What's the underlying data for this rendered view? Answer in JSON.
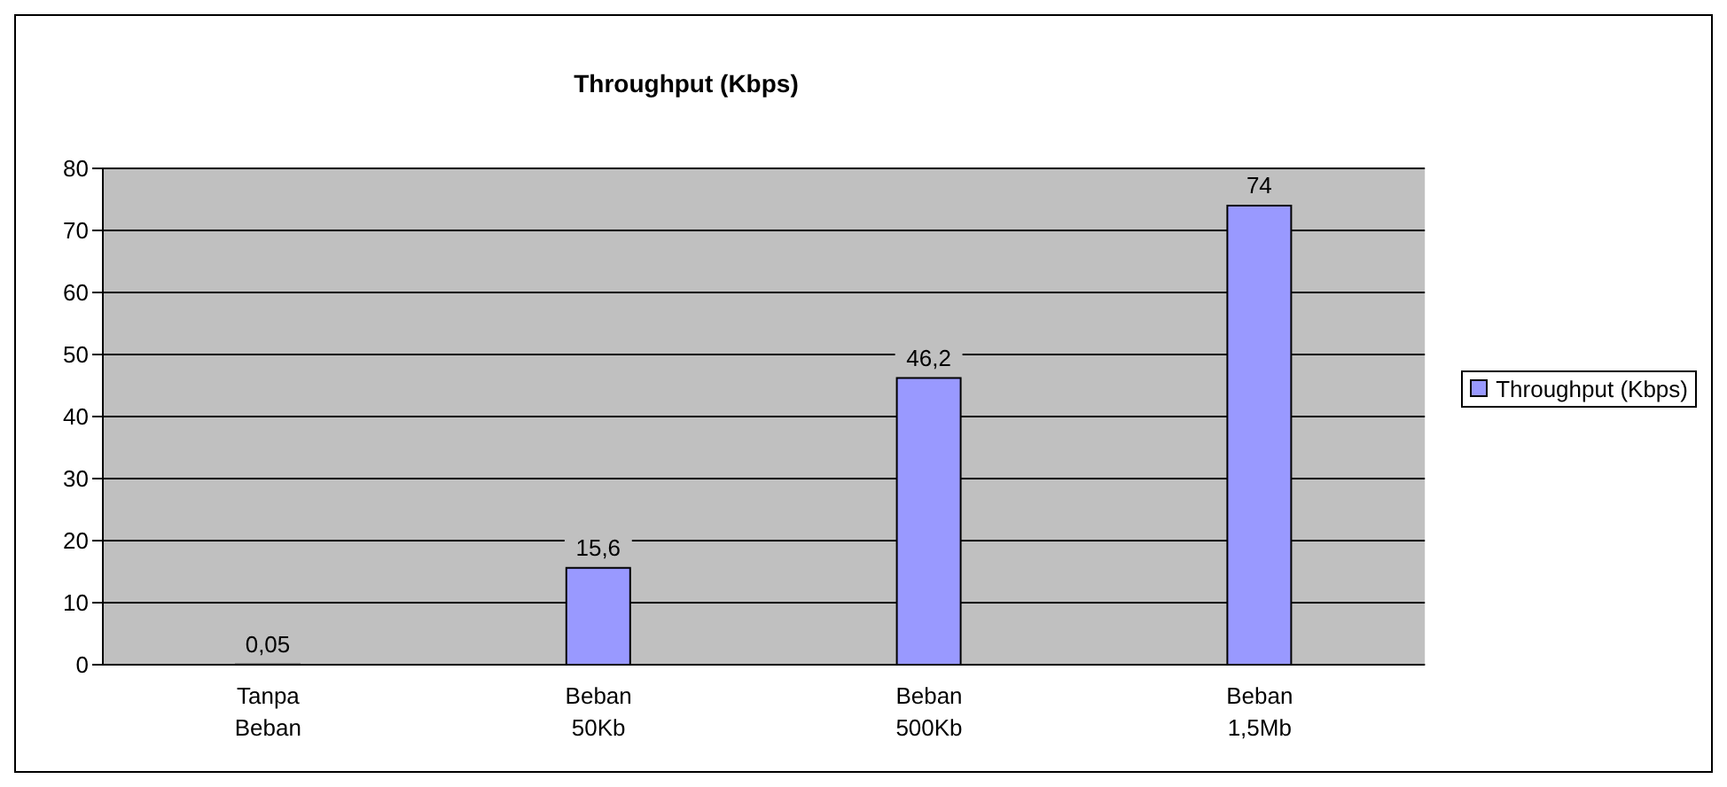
{
  "chart_data": {
    "type": "bar",
    "title": "Throughput (Kbps)",
    "categories": [
      "Tanpa Beban",
      "Beban 50Kb",
      "Beban 500Kb",
      "Beban 1,5Mb"
    ],
    "series": [
      {
        "name": "Throughput (Kbps)",
        "color": "#9999ff",
        "values": [
          0.05,
          15.6,
          46.2,
          74
        ],
        "value_labels": [
          "0,05",
          "15,6",
          "46,2",
          "74"
        ]
      }
    ],
    "ylim": [
      0,
      80
    ],
    "yticks": [
      0,
      10,
      20,
      30,
      40,
      50,
      60,
      70,
      80
    ],
    "grid": "y",
    "legend": "right"
  }
}
